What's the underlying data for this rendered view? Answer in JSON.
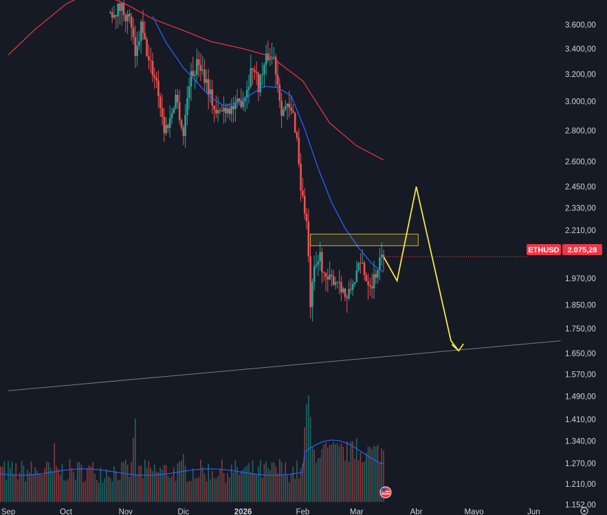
{
  "symbol": "ETHUSD",
  "last_price_label": "2.075,28",
  "colors": {
    "background": "#161a25",
    "up": "#26a69a",
    "down": "#ef5350",
    "ma_fast": "#2962ff",
    "ma_slow": "#e0353e",
    "projection": "#f5e84a",
    "zone_stroke": "#c9b23a",
    "trendline": "#7a7d86",
    "badge": "#f23645"
  },
  "icons": [
    "flag-us-icon",
    "settings-gear-icon"
  ],
  "chart_data": {
    "type": "candlestick",
    "y_scale": "log",
    "y_range": [
      1152,
      3700
    ],
    "y_tick_labels": [
      "3.600,00",
      "3.400,00",
      "3.200,00",
      "3.000,00",
      "2.800,00",
      "2.600,00",
      "2.450,00",
      "2.330,00",
      "2.210,00",
      "2.075,28",
      "1.970,00",
      "1.850,00",
      "1.750,00",
      "1.650,00",
      "1.570,00",
      "1.490,00",
      "1.410,00",
      "1.340,00",
      "1.270,00",
      "1.210,00",
      "1.152,00"
    ],
    "y_tick_values": [
      3600,
      3400,
      3200,
      3000,
      2800,
      2600,
      2450,
      2330,
      2210,
      2075.28,
      1970,
      1850,
      1750,
      1650,
      1570,
      1490,
      1410,
      1340,
      1270,
      1210,
      1152
    ],
    "x_labels": [
      "Sep",
      "Oct",
      "Nov",
      "Dic",
      "2026",
      "Feb",
      "Mar",
      "Abr",
      "Mayo",
      "Jun"
    ],
    "x_label_dates": [
      "2025-09-01",
      "2025-10-01",
      "2025-11-01",
      "2025-12-01",
      "2026-01-01",
      "2026-02-01",
      "2026-03-01",
      "2026-04-01",
      "2026-05-01",
      "2026-06-01"
    ],
    "last_price": 2075.28,
    "price_path": [
      [
        "2025-10-23",
        3700
      ],
      [
        "2025-10-30",
        3750
      ],
      [
        "2025-11-04",
        3600
      ],
      [
        "2025-11-06",
        3300
      ],
      [
        "2025-11-09",
        3580
      ],
      [
        "2025-11-13",
        3300
      ],
      [
        "2025-11-17",
        3150
      ],
      [
        "2025-11-21",
        2800
      ],
      [
        "2025-11-24",
        2870
      ],
      [
        "2025-11-27",
        3050
      ],
      [
        "2025-12-01",
        2770
      ],
      [
        "2025-12-04",
        3150
      ],
      [
        "2025-12-09",
        3300
      ],
      [
        "2025-12-13",
        3150
      ],
      [
        "2025-12-18",
        2900
      ],
      [
        "2025-12-23",
        2960
      ],
      [
        "2025-12-28",
        2950
      ],
      [
        "2026-01-02",
        3050
      ],
      [
        "2026-01-06",
        3270
      ],
      [
        "2026-01-09",
        3120
      ],
      [
        "2026-01-14",
        3350
      ],
      [
        "2026-01-17",
        3330
      ],
      [
        "2026-01-21",
        2950
      ],
      [
        "2026-01-24",
        2950
      ],
      [
        "2026-01-27",
        2900
      ],
      [
        "2026-01-29",
        2750
      ],
      [
        "2026-01-31",
        2450
      ],
      [
        "2026-02-03",
        2250
      ],
      [
        "2026-02-05",
        1850
      ],
      [
        "2026-02-07",
        2000
      ],
      [
        "2026-02-10",
        2080
      ],
      [
        "2026-02-13",
        1950
      ],
      [
        "2026-02-17",
        1970
      ],
      [
        "2026-02-20",
        1960
      ],
      [
        "2026-02-24",
        1870
      ],
      [
        "2026-02-27",
        1950
      ],
      [
        "2026-03-01",
        2000
      ],
      [
        "2026-03-04",
        2040
      ],
      [
        "2026-03-06",
        1970
      ],
      [
        "2026-03-09",
        1950
      ],
      [
        "2026-03-11",
        2000
      ],
      [
        "2026-03-13",
        2050
      ],
      [
        "2026-03-15",
        2075.28
      ]
    ],
    "moving_average_fast": [
      [
        "2025-11-15",
        3670
      ],
      [
        "2025-11-22",
        3450
      ],
      [
        "2025-12-01",
        3250
      ],
      [
        "2025-12-08",
        3140
      ],
      [
        "2025-12-15",
        3030
      ],
      [
        "2025-12-22",
        2970
      ],
      [
        "2025-12-29",
        2990
      ],
      [
        "2026-01-05",
        3050
      ],
      [
        "2026-01-12",
        3110
      ],
      [
        "2026-01-19",
        3100
      ],
      [
        "2026-01-26",
        3040
      ],
      [
        "2026-02-02",
        2810
      ],
      [
        "2026-02-09",
        2560
      ],
      [
        "2026-02-16",
        2360
      ],
      [
        "2026-02-23",
        2220
      ],
      [
        "2026-03-02",
        2120
      ],
      [
        "2026-03-09",
        2040
      ],
      [
        "2026-03-15",
        2000
      ]
    ],
    "moving_average_slow": [
      [
        "2025-09-01",
        3350
      ],
      [
        "2025-09-15",
        3560
      ],
      [
        "2025-10-01",
        3780
      ],
      [
        "2025-10-15",
        3900
      ],
      [
        "2025-11-01",
        3780
      ],
      [
        "2025-11-15",
        3650
      ],
      [
        "2025-12-01",
        3550
      ],
      [
        "2025-12-15",
        3460
      ],
      [
        "2026-01-01",
        3400
      ],
      [
        "2026-01-15",
        3340
      ],
      [
        "2026-02-01",
        3150
      ],
      [
        "2026-02-15",
        2850
      ],
      [
        "2026-03-01",
        2700
      ],
      [
        "2026-03-15",
        2610
      ]
    ],
    "resistance_zone": {
      "low": 2130,
      "high": 2190,
      "from": "2026-02-05",
      "to": "2026-04-02"
    },
    "projection_path": [
      [
        "2026-03-15",
        2075
      ],
      [
        "2026-03-22",
        1960
      ],
      [
        "2026-04-01",
        2450
      ],
      [
        "2026-04-19",
        1700
      ],
      [
        "2026-04-23",
        1660
      ]
    ],
    "trendline": [
      [
        "2025-09-01",
        1510
      ],
      [
        "2026-06-15",
        1700
      ]
    ],
    "volume_pane": {
      "description_values": "relative volume 0..1",
      "peaks": [
        [
          "2025-09-25",
          0.55
        ],
        [
          "2025-11-05",
          0.6
        ],
        [
          "2025-11-06",
          0.78
        ],
        [
          "2025-12-01",
          0.45
        ],
        [
          "2026-01-20",
          0.4
        ],
        [
          "2026-02-02",
          0.7
        ],
        [
          "2026-02-03",
          0.92
        ],
        [
          "2026-02-04",
          1.0
        ],
        [
          "2026-02-05",
          0.8
        ],
        [
          "2026-03-01",
          0.6
        ]
      ]
    }
  }
}
